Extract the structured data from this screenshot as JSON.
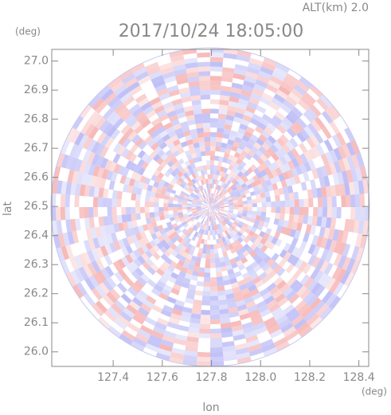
{
  "chart_data": {
    "type": "radar-ppi",
    "title": "2017/10/24 18:05:00",
    "subtitle": "ALT(km) 2.0",
    "x_label": "lon",
    "y_label": "lat",
    "x_unit": "(deg)",
    "y_unit": "(deg)",
    "xlim": [
      127.15,
      128.44
    ],
    "ylim": [
      25.95,
      27.04
    ],
    "xticks": [
      127.4,
      127.6,
      127.8,
      {
        "value": 128,
        "label": "128.0"
      },
      128.2,
      128.4
    ],
    "yticks": [
      {
        "value": 26,
        "label": "26.0"
      },
      26.1,
      26.2,
      26.3,
      26.4,
      26.5,
      26.6,
      26.7,
      26.8,
      26.9,
      {
        "value": 27,
        "label": "27.0"
      }
    ]
  }
}
